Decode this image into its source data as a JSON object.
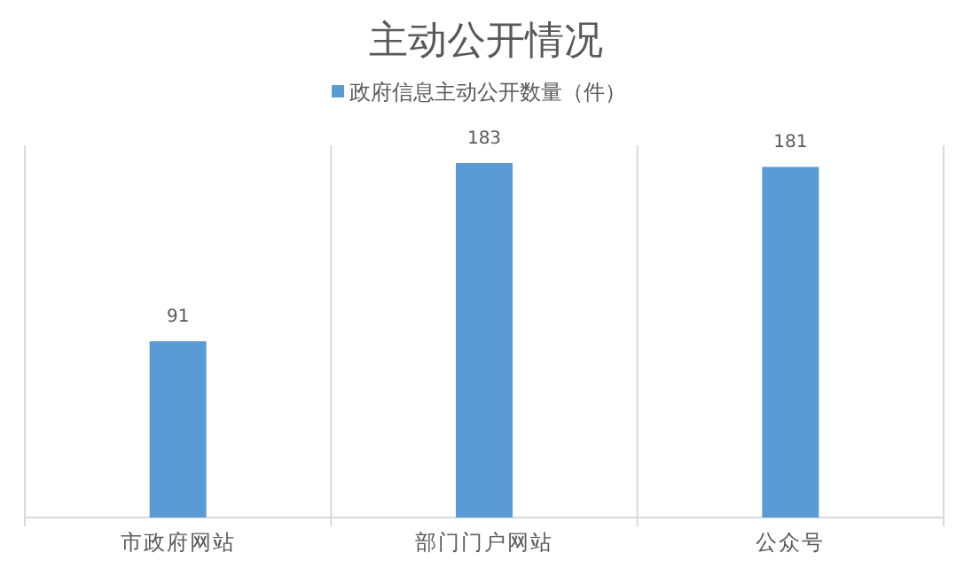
{
  "chart_data": {
    "type": "bar",
    "title": "主动公开情况",
    "categories": [
      "市政府网站",
      "部门门户网站",
      "公众号"
    ],
    "series": [
      {
        "name": "政府信息主动公开数量（件）",
        "color": "#5b9bd5",
        "values": [
          91,
          183,
          181
        ]
      }
    ],
    "data_labels": true,
    "grid": "x",
    "legend": "top"
  }
}
